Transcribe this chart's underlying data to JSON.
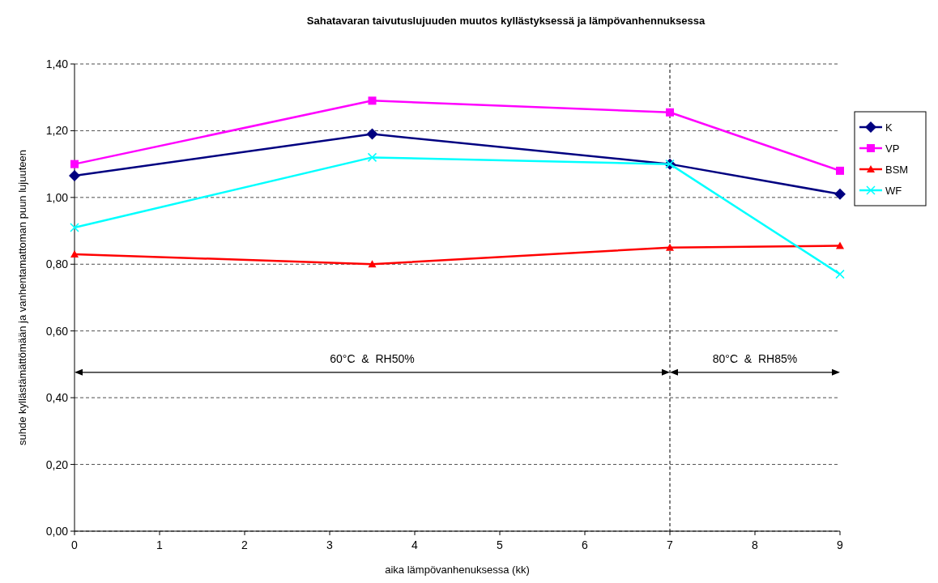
{
  "chart_data": {
    "type": "line",
    "title": "Sahatavaran taivutuslujuuden muutos kyllästyksessä ja lämpövanhennuksessa",
    "xlabel": "aika lämpövanhenuksessa (kk)",
    "ylabel": "suhde kyllästämättömään ja vanhentamattoman puun lujuuteen",
    "x": [
      0,
      3.5,
      7,
      9
    ],
    "series": [
      {
        "name": "K",
        "color": "#000080",
        "marker": "diamond",
        "values": [
          1.065,
          1.19,
          1.1,
          1.01
        ]
      },
      {
        "name": "VP",
        "color": "#ff00ff",
        "marker": "square",
        "values": [
          1.1,
          1.29,
          1.255,
          1.08
        ]
      },
      {
        "name": "BSM",
        "color": "#ff0000",
        "marker": "triangle",
        "values": [
          0.83,
          0.8,
          0.85,
          0.855
        ]
      },
      {
        "name": "WF",
        "color": "#00ffff",
        "marker": "cross",
        "values": [
          0.91,
          1.12,
          1.1,
          0.77
        ]
      }
    ],
    "xlim": [
      0,
      9
    ],
    "xticks": [
      0,
      1,
      2,
      3,
      4,
      5,
      6,
      7,
      8,
      9
    ],
    "ylim": [
      0,
      1.4
    ],
    "yticks": [
      {
        "value": 0,
        "label": "0,00"
      },
      {
        "value": 0.2,
        "label": "0,20"
      },
      {
        "value": 0.4,
        "label": "0,40"
      },
      {
        "value": 0.6,
        "label": "0,60"
      },
      {
        "value": 0.8,
        "label": "0,80"
      },
      {
        "value": 1.0,
        "label": "1,00"
      },
      {
        "value": 1.2,
        "label": "1,20"
      },
      {
        "value": 1.4,
        "label": "1,40"
      }
    ],
    "grid": "y",
    "legend": "right",
    "line_style": "solid",
    "ref_lines": [
      {
        "axis": "x",
        "value": 7,
        "line_style": "dashed",
        "color": "#000000"
      }
    ],
    "annotations": [
      "60°C  &  RH50%",
      "80°C  &  RH85%"
    ]
  }
}
